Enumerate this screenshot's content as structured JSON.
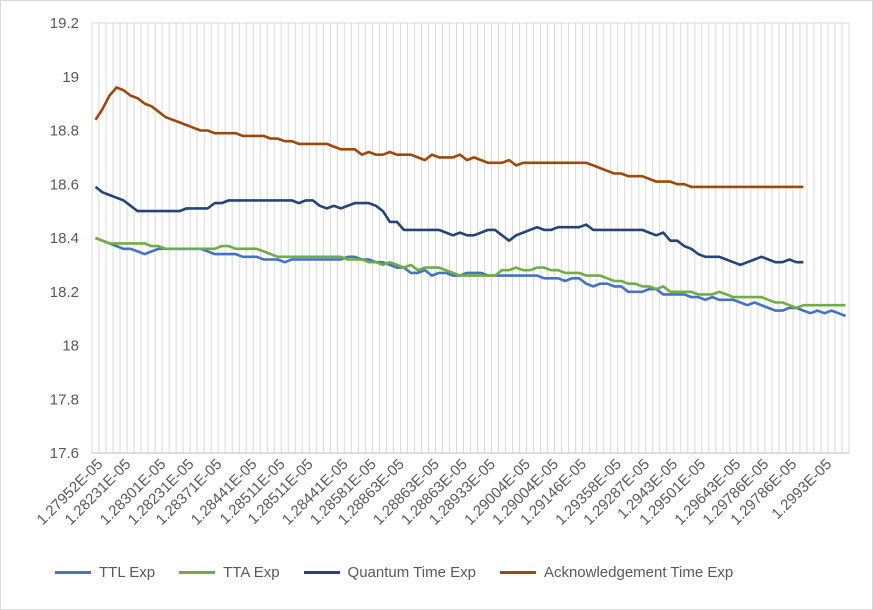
{
  "chart_data": {
    "type": "line",
    "title": "",
    "xlabel": "",
    "ylabel": "",
    "ylim": [
      17.6,
      19.2
    ],
    "yticks": [
      "17.6",
      "17.8",
      "18",
      "18.2",
      "18.4",
      "18.6",
      "18.8",
      "19",
      "19.2"
    ],
    "grid": "vertical",
    "legend_position": "bottom",
    "x_tick_labels": [
      "1.27952E-05",
      "1.28231E-05",
      "1.28301E-05",
      "1.28231E-05",
      "1.28371E-05",
      "1.28441E-05",
      "1.28511E-05",
      "1.28511E-05",
      "1.28441E-05",
      "1.28581E-05",
      "1.28863E-05",
      "1.28863E-05",
      "1.28863E-05",
      "1.28933E-05",
      "1.29004E-05",
      "1.29004E-05",
      "1.29146E-05",
      "1.29358E-05",
      "1.29287E-05",
      "1.2943E-05",
      "1.29501E-05",
      "1.29643E-05",
      "1.29786E-05",
      "1.29786E-05",
      "1.2993E-05"
    ],
    "series": [
      {
        "name": "TTL Exp",
        "color": "#4472C4",
        "values": [
          18.4,
          18.39,
          18.38,
          18.37,
          18.36,
          18.36,
          18.35,
          18.34,
          18.35,
          18.36,
          18.36,
          18.36,
          18.36,
          18.36,
          18.36,
          18.36,
          18.35,
          18.34,
          18.34,
          18.34,
          18.34,
          18.33,
          18.33,
          18.33,
          18.32,
          18.32,
          18.32,
          18.31,
          18.32,
          18.32,
          18.32,
          18.32,
          18.32,
          18.32,
          18.32,
          18.32,
          18.33,
          18.33,
          18.32,
          18.32,
          18.31,
          18.31,
          18.3,
          18.29,
          18.29,
          18.27,
          18.27,
          18.28,
          18.26,
          18.27,
          18.27,
          18.26,
          18.26,
          18.27,
          18.27,
          18.27,
          18.26,
          18.26,
          18.26,
          18.26,
          18.26,
          18.26,
          18.26,
          18.26,
          18.25,
          18.25,
          18.25,
          18.24,
          18.25,
          18.25,
          18.23,
          18.22,
          18.23,
          18.23,
          18.22,
          18.22,
          18.2,
          18.2,
          18.2,
          18.21,
          18.21,
          18.19,
          18.19,
          18.19,
          18.19,
          18.18,
          18.18,
          18.17,
          18.18,
          18.17,
          18.17,
          18.17,
          18.16,
          18.15,
          18.16,
          18.15,
          18.14,
          18.13,
          18.13,
          18.14,
          18.14,
          18.13,
          18.12,
          18.13,
          18.12,
          18.13,
          18.12,
          18.11
        ]
      },
      {
        "name": "TTA Exp",
        "color": "#70AD47",
        "values": [
          18.4,
          18.39,
          18.38,
          18.38,
          18.38,
          18.38,
          18.38,
          18.38,
          18.37,
          18.37,
          18.36,
          18.36,
          18.36,
          18.36,
          18.36,
          18.36,
          18.36,
          18.36,
          18.37,
          18.37,
          18.36,
          18.36,
          18.36,
          18.36,
          18.35,
          18.34,
          18.33,
          18.33,
          18.33,
          18.33,
          18.33,
          18.33,
          18.33,
          18.33,
          18.33,
          18.33,
          18.32,
          18.32,
          18.32,
          18.31,
          18.31,
          18.3,
          18.31,
          18.3,
          18.29,
          18.3,
          18.28,
          18.29,
          18.29,
          18.29,
          18.28,
          18.27,
          18.26,
          18.26,
          18.26,
          18.26,
          18.26,
          18.26,
          18.28,
          18.28,
          18.29,
          18.28,
          18.28,
          18.29,
          18.29,
          18.28,
          18.28,
          18.27,
          18.27,
          18.27,
          18.26,
          18.26,
          18.26,
          18.25,
          18.24,
          18.24,
          18.23,
          18.23,
          18.22,
          18.22,
          18.21,
          18.22,
          18.2,
          18.2,
          18.2,
          18.2,
          18.19,
          18.19,
          18.19,
          18.2,
          18.19,
          18.18,
          18.18,
          18.18,
          18.18,
          18.18,
          18.17,
          18.16,
          18.16,
          18.15,
          18.14,
          18.15,
          18.15,
          18.15,
          18.15,
          18.15,
          18.15,
          18.15
        ]
      },
      {
        "name": "Quantum Time Exp",
        "color": "#264478",
        "values": [
          18.59,
          18.57,
          18.56,
          18.55,
          18.54,
          18.52,
          18.5,
          18.5,
          18.5,
          18.5,
          18.5,
          18.5,
          18.5,
          18.51,
          18.51,
          18.51,
          18.51,
          18.53,
          18.53,
          18.54,
          18.54,
          18.54,
          18.54,
          18.54,
          18.54,
          18.54,
          18.54,
          18.54,
          18.54,
          18.53,
          18.54,
          18.54,
          18.52,
          18.51,
          18.52,
          18.51,
          18.52,
          18.53,
          18.53,
          18.53,
          18.52,
          18.5,
          18.46,
          18.46,
          18.43,
          18.43,
          18.43,
          18.43,
          18.43,
          18.43,
          18.42,
          18.41,
          18.42,
          18.41,
          18.41,
          18.42,
          18.43,
          18.43,
          18.41,
          18.39,
          18.41,
          18.42,
          18.43,
          18.44,
          18.43,
          18.43,
          18.44,
          18.44,
          18.44,
          18.44,
          18.45,
          18.43,
          18.43,
          18.43,
          18.43,
          18.43,
          18.43,
          18.43,
          18.43,
          18.42,
          18.41,
          18.42,
          18.39,
          18.39,
          18.37,
          18.36,
          18.34,
          18.33,
          18.33,
          18.33,
          18.32,
          18.31,
          18.3,
          18.31,
          18.32,
          18.33,
          18.32,
          18.31,
          18.31,
          18.32,
          18.31,
          18.31
        ]
      },
      {
        "name": "Acknowledgement Time Exp",
        "color": "#9E480E",
        "values": [
          18.84,
          18.88,
          18.93,
          18.96,
          18.95,
          18.93,
          18.92,
          18.9,
          18.89,
          18.87,
          18.85,
          18.84,
          18.83,
          18.82,
          18.81,
          18.8,
          18.8,
          18.79,
          18.79,
          18.79,
          18.79,
          18.78,
          18.78,
          18.78,
          18.78,
          18.77,
          18.77,
          18.76,
          18.76,
          18.75,
          18.75,
          18.75,
          18.75,
          18.75,
          18.74,
          18.73,
          18.73,
          18.73,
          18.71,
          18.72,
          18.71,
          18.71,
          18.72,
          18.71,
          18.71,
          18.71,
          18.7,
          18.69,
          18.71,
          18.7,
          18.7,
          18.7,
          18.71,
          18.69,
          18.7,
          18.69,
          18.68,
          18.68,
          18.68,
          18.69,
          18.67,
          18.68,
          18.68,
          18.68,
          18.68,
          18.68,
          18.68,
          18.68,
          18.68,
          18.68,
          18.68,
          18.67,
          18.66,
          18.65,
          18.64,
          18.64,
          18.63,
          18.63,
          18.63,
          18.62,
          18.61,
          18.61,
          18.61,
          18.6,
          18.6,
          18.59,
          18.59,
          18.59,
          18.59,
          18.59,
          18.59,
          18.59,
          18.59,
          18.59,
          18.59,
          18.59,
          18.59,
          18.59,
          18.59,
          18.59,
          18.59,
          18.59
        ]
      }
    ]
  }
}
